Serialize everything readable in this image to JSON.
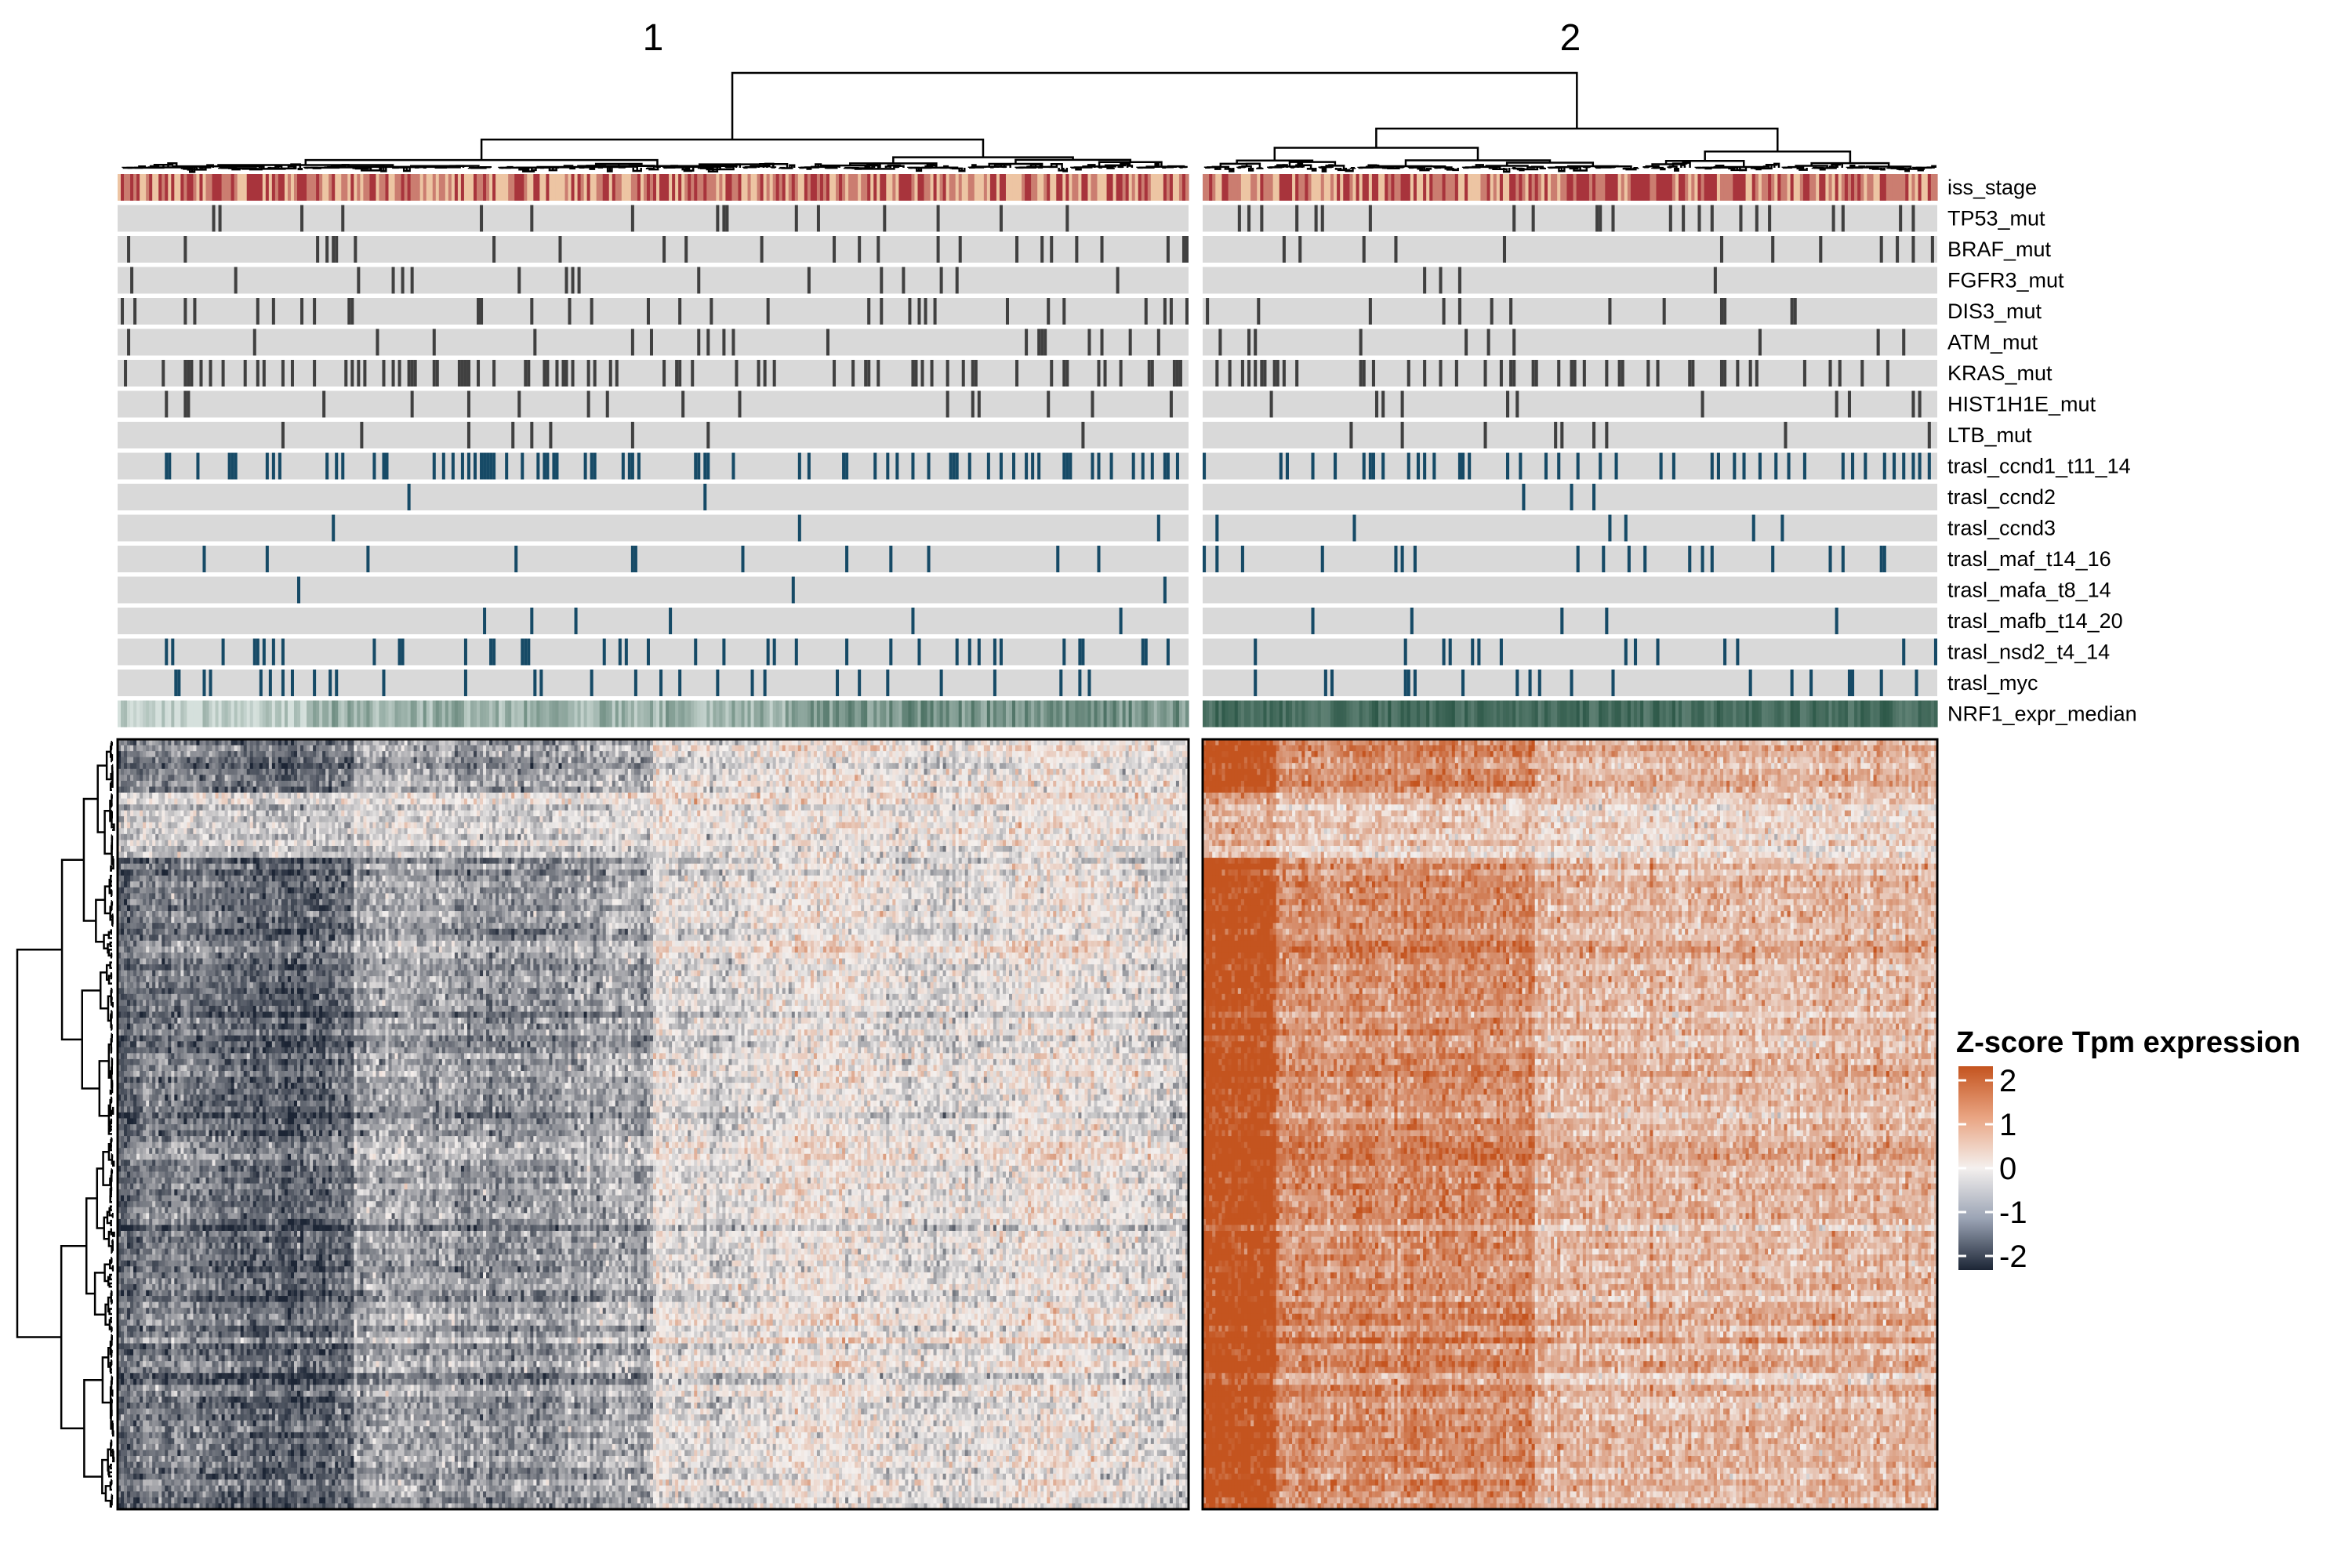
{
  "chart_data": {
    "type": "heatmap",
    "title": "",
    "xlabel": "",
    "ylabel": "",
    "column_clusters": [
      {
        "label": "1",
        "n_samples": 340
      },
      {
        "label": "2",
        "n_samples": 230
      }
    ],
    "annotation_tracks": [
      {
        "name": "iss_stage",
        "kind": "ordinal"
      },
      {
        "name": "TP53_mut",
        "kind": "binary",
        "group": "mutation",
        "freq": [
          0.04,
          0.09
        ]
      },
      {
        "name": "BRAF_mut",
        "kind": "binary",
        "group": "mutation",
        "freq": [
          0.06,
          0.05
        ]
      },
      {
        "name": "FGFR3_mut",
        "kind": "binary",
        "group": "mutation",
        "freq": [
          0.05,
          0.03
        ]
      },
      {
        "name": "DIS3_mut",
        "kind": "binary",
        "group": "mutation",
        "freq": [
          0.09,
          0.07
        ]
      },
      {
        "name": "ATM_mut",
        "kind": "binary",
        "group": "mutation",
        "freq": [
          0.05,
          0.03
        ]
      },
      {
        "name": "KRAS_mut",
        "kind": "binary",
        "group": "mutation",
        "freq": [
          0.2,
          0.18
        ]
      },
      {
        "name": "HIST1H1E_mut",
        "kind": "binary",
        "group": "mutation",
        "freq": [
          0.04,
          0.06
        ]
      },
      {
        "name": "LTB_mut",
        "kind": "binary",
        "group": "mutation",
        "freq": [
          0.03,
          0.05
        ]
      },
      {
        "name": "trasl_ccnd1_t11_14",
        "kind": "binary",
        "group": "translocation",
        "freq": [
          0.2,
          0.15
        ]
      },
      {
        "name": "trasl_ccnd2",
        "kind": "binary",
        "group": "translocation",
        "freq": [
          0.01,
          0.02
        ]
      },
      {
        "name": "trasl_ccnd3",
        "kind": "binary",
        "group": "translocation",
        "freq": [
          0.01,
          0.03
        ]
      },
      {
        "name": "trasl_maf_t14_16",
        "kind": "binary",
        "group": "translocation",
        "freq": [
          0.03,
          0.06
        ]
      },
      {
        "name": "trasl_mafa_t8_14",
        "kind": "binary",
        "group": "translocation",
        "freq": [
          0.005,
          0.01
        ]
      },
      {
        "name": "trasl_mafb_t14_20",
        "kind": "binary",
        "group": "translocation",
        "freq": [
          0.02,
          0.02
        ]
      },
      {
        "name": "trasl_nsd2_t4_14",
        "kind": "binary",
        "group": "translocation",
        "freq": [
          0.13,
          0.06
        ]
      },
      {
        "name": "trasl_myc",
        "kind": "binary",
        "group": "translocation",
        "freq": [
          0.08,
          0.1
        ]
      },
      {
        "name": "NRF1_expr_median",
        "kind": "continuous"
      }
    ],
    "n_genes": 130,
    "z_range": [
      -2,
      2
    ],
    "mean_z_by_cluster": [
      -0.5,
      1.2
    ],
    "legend": {
      "title": "Z-score Tpm expression",
      "ticks": [
        "2",
        "1",
        "0",
        "-1",
        "-2"
      ],
      "placement": "right"
    },
    "colors": {
      "high": "#c4541f",
      "mid": "#f4f0ee",
      "low": "#1c2535",
      "na_track": "#d9d9d9",
      "mutation": "#404040",
      "translocation": "#164a66",
      "iss_low": "#edc5a3",
      "iss_high": "#a8343c",
      "nrf1_low": "#d5e0dc",
      "nrf1_high": "#2d5848"
    }
  }
}
